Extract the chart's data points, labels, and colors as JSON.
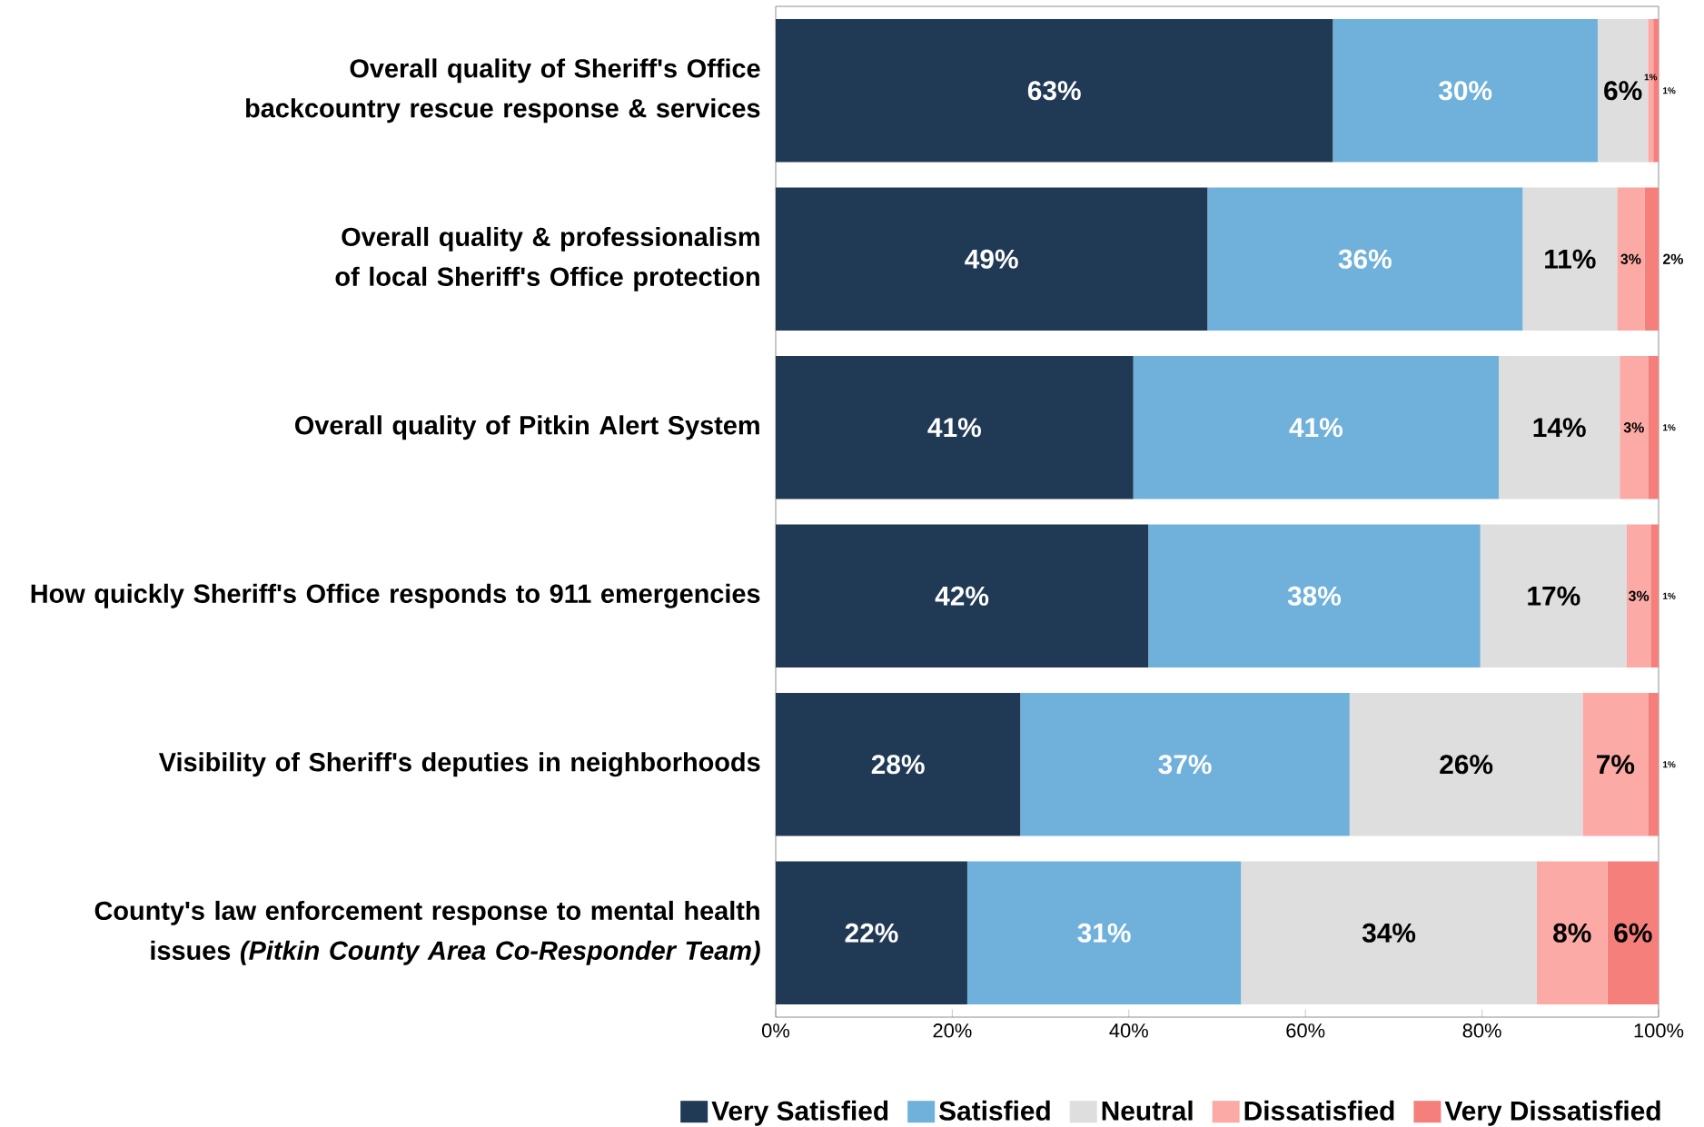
{
  "chart_data": {
    "type": "bar",
    "orientation": "horizontal",
    "stacked": true,
    "grid": false,
    "legend": "bottom",
    "categories": [
      "Overall quality of Sheriff's Office backcountry rescue response & services",
      "Overall quality & professionalism of local Sheriff's Office protection",
      "Overall quality of Pitkin Alert System",
      "How quickly Sheriff's Office responds to 911 emergencies",
      "Visibility of Sheriff's deputies in neighborhoods",
      "County's law enforcement response to mental health issues *(Pitkin County Area Co-Responder Team)*"
    ],
    "xlim": [
      0,
      100
    ],
    "xticks": [
      {
        "value": 0,
        "label": "0%"
      },
      {
        "value": 20,
        "label": "20%"
      },
      {
        "value": 40,
        "label": "40%"
      },
      {
        "value": 60,
        "label": "60%"
      },
      {
        "value": 80,
        "label": "80%"
      },
      {
        "value": 100,
        "label": "100%"
      }
    ],
    "series": [
      {
        "name": "Very Satisfied",
        "color": "#203a55",
        "values": [
          63.1,
          48.9,
          40.5,
          42.2,
          27.7,
          21.7
        ],
        "value_labels": [
          "63%",
          "49%",
          "41%",
          "42%",
          "28%",
          "22%"
        ]
      },
      {
        "name": "Satisfied",
        "color": "#6fb1db",
        "values": [
          30.0,
          35.7,
          41.4,
          37.6,
          37.3,
          31.0
        ],
        "value_labels": [
          "30%",
          "36%",
          "41%",
          "38%",
          "37%",
          "31%"
        ]
      },
      {
        "name": "Neutral",
        "color": "#dedede",
        "values": [
          5.7,
          10.7,
          13.7,
          16.6,
          26.4,
          33.5
        ],
        "value_labels": [
          "6%",
          "11%",
          "14%",
          "17%",
          "26%",
          "34%"
        ]
      },
      {
        "name": "Dissatisfied",
        "color": "#fbaaa5",
        "values": [
          0.6,
          3.1,
          3.2,
          2.7,
          7.4,
          8.0
        ],
        "value_labels": [
          "1%",
          "3%",
          "3%",
          "3%",
          "7%",
          "8%"
        ]
      },
      {
        "name": "Very Dissatisfied",
        "color": "#f47f7b",
        "values": [
          0.6,
          1.6,
          1.2,
          0.9,
          1.2,
          5.8
        ],
        "value_labels": [
          "1%",
          "2%",
          "1%",
          "1%",
          "1%",
          "6%"
        ]
      }
    ]
  }
}
